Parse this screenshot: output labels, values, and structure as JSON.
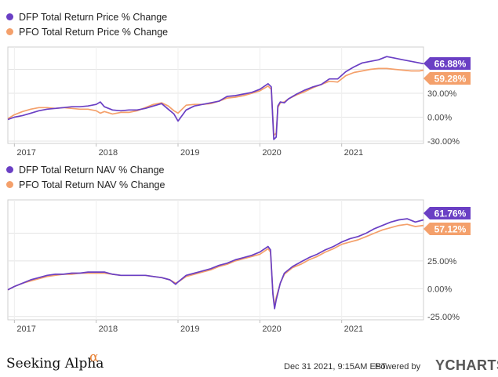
{
  "chart_data": [
    {
      "type": "line",
      "legend_placement": "top-left",
      "grid": true,
      "x_ticks": [
        "2017",
        "2018",
        "2019",
        "2020",
        "2021"
      ],
      "x_range": [
        2016.92,
        2022.0
      ],
      "ylim": [
        -33,
        88
      ],
      "y_ticks": [
        -30,
        0,
        30
      ],
      "y_tick_labels": [
        "-30.00%",
        "0.00%",
        "30.00%"
      ],
      "series": [
        {
          "name": "DFP Total Return Price % Change",
          "color": "#6a3fc4",
          "end_label": "66.88%",
          "x": [
            2016.92,
            2017.0,
            2017.1,
            2017.2,
            2017.3,
            2017.4,
            2017.5,
            2017.6,
            2017.7,
            2017.8,
            2017.9,
            2018.0,
            2018.05,
            2018.1,
            2018.2,
            2018.3,
            2018.4,
            2018.5,
            2018.6,
            2018.7,
            2018.8,
            2018.88,
            2018.95,
            2019.0,
            2019.1,
            2019.2,
            2019.3,
            2019.4,
            2019.5,
            2019.6,
            2019.7,
            2019.8,
            2019.9,
            2020.0,
            2020.1,
            2020.14,
            2020.17,
            2020.2,
            2020.22,
            2020.25,
            2020.3,
            2020.35,
            2020.45,
            2020.55,
            2020.65,
            2020.75,
            2020.85,
            2020.95,
            2021.05,
            2021.15,
            2021.25,
            2021.35,
            2021.45,
            2021.55,
            2021.65,
            2021.75,
            2021.85,
            2021.95,
            2022.0
          ],
          "values": [
            -3,
            0,
            2,
            5,
            8,
            10,
            11,
            12,
            13,
            13,
            14,
            16,
            19,
            13,
            9,
            8,
            9,
            9,
            11,
            14,
            17,
            10,
            4,
            -5,
            9,
            14,
            16,
            18,
            20,
            26,
            27,
            29,
            31,
            35,
            42,
            38,
            -28,
            -25,
            14,
            19,
            18,
            23,
            29,
            34,
            38,
            41,
            48,
            48,
            57,
            63,
            68,
            70,
            72,
            76,
            74,
            72,
            70,
            68,
            67
          ]
        },
        {
          "name": "PFO Total Return Price % Change",
          "color": "#f4a06b",
          "end_label": "59.28%",
          "x": [
            2016.92,
            2017.0,
            2017.1,
            2017.2,
            2017.3,
            2017.4,
            2017.5,
            2017.6,
            2017.7,
            2017.8,
            2017.9,
            2018.0,
            2018.05,
            2018.1,
            2018.2,
            2018.3,
            2018.4,
            2018.5,
            2018.6,
            2018.7,
            2018.8,
            2018.88,
            2018.95,
            2019.0,
            2019.1,
            2019.2,
            2019.3,
            2019.4,
            2019.5,
            2019.6,
            2019.7,
            2019.8,
            2019.9,
            2020.0,
            2020.1,
            2020.14,
            2020.17,
            2020.2,
            2020.22,
            2020.25,
            2020.3,
            2020.35,
            2020.45,
            2020.55,
            2020.65,
            2020.75,
            2020.85,
            2020.95,
            2021.05,
            2021.15,
            2021.25,
            2021.35,
            2021.45,
            2021.55,
            2021.65,
            2021.75,
            2021.85,
            2021.95,
            2022.0
          ],
          "values": [
            -2,
            3,
            7,
            10,
            12,
            12,
            11,
            12,
            11,
            10,
            10,
            8,
            5,
            7,
            4,
            6,
            6,
            8,
            12,
            16,
            18,
            14,
            8,
            5,
            15,
            16,
            16,
            17,
            20,
            24,
            25,
            27,
            30,
            33,
            39,
            35,
            -23,
            -20,
            12,
            18,
            19,
            23,
            28,
            32,
            37,
            41,
            45,
            44,
            52,
            56,
            58,
            60,
            61,
            61,
            60,
            59,
            58,
            58,
            59
          ]
        }
      ]
    },
    {
      "type": "line",
      "legend_placement": "top-left",
      "grid": true,
      "x_ticks": [
        "2017",
        "2018",
        "2019",
        "2020",
        "2021"
      ],
      "x_range": [
        2016.92,
        2022.0
      ],
      "ylim": [
        -28,
        80
      ],
      "y_ticks": [
        -25,
        0,
        25
      ],
      "y_tick_labels": [
        "-25.00%",
        "0.00%",
        "25.00%"
      ],
      "series": [
        {
          "name": "DFP Total Return NAV % Change",
          "color": "#6a3fc4",
          "end_label": "61.76%",
          "x": [
            2016.92,
            2017.0,
            2017.1,
            2017.2,
            2017.3,
            2017.4,
            2017.5,
            2017.6,
            2017.7,
            2017.8,
            2017.9,
            2018.0,
            2018.1,
            2018.2,
            2018.3,
            2018.4,
            2018.5,
            2018.6,
            2018.7,
            2018.8,
            2018.9,
            2018.97,
            2019.0,
            2019.1,
            2019.2,
            2019.3,
            2019.4,
            2019.5,
            2019.6,
            2019.7,
            2019.8,
            2019.9,
            2020.0,
            2020.1,
            2020.13,
            2020.16,
            2020.18,
            2020.2,
            2020.25,
            2020.3,
            2020.4,
            2020.5,
            2020.6,
            2020.7,
            2020.8,
            2020.9,
            2021.0,
            2021.1,
            2021.2,
            2021.3,
            2021.4,
            2021.5,
            2021.6,
            2021.7,
            2021.8,
            2021.9,
            2022.0
          ],
          "values": [
            -1,
            2,
            5,
            8,
            10,
            12,
            13,
            13,
            14,
            14,
            15,
            15,
            15,
            13,
            12,
            12,
            12,
            12,
            11,
            10,
            8,
            4,
            6,
            12,
            14,
            16,
            18,
            21,
            23,
            26,
            28,
            30,
            33,
            38,
            35,
            -5,
            -18,
            -10,
            5,
            14,
            20,
            24,
            28,
            31,
            35,
            38,
            42,
            45,
            47,
            50,
            54,
            57,
            60,
            62,
            63,
            60,
            62
          ]
        },
        {
          "name": "PFO Total Return NAV % Change",
          "color": "#f4a06b",
          "end_label": "57.12%",
          "x": [
            2016.92,
            2017.0,
            2017.1,
            2017.2,
            2017.3,
            2017.4,
            2017.5,
            2017.6,
            2017.7,
            2017.8,
            2017.9,
            2018.0,
            2018.1,
            2018.2,
            2018.3,
            2018.4,
            2018.5,
            2018.6,
            2018.7,
            2018.8,
            2018.9,
            2018.97,
            2019.0,
            2019.1,
            2019.2,
            2019.3,
            2019.4,
            2019.5,
            2019.6,
            2019.7,
            2019.8,
            2019.9,
            2020.0,
            2020.1,
            2020.13,
            2020.16,
            2020.18,
            2020.2,
            2020.25,
            2020.3,
            2020.4,
            2020.5,
            2020.6,
            2020.7,
            2020.8,
            2020.9,
            2021.0,
            2021.1,
            2021.2,
            2021.3,
            2021.4,
            2021.5,
            2021.6,
            2021.7,
            2021.8,
            2021.9,
            2022.0
          ],
          "values": [
            -1,
            2,
            5,
            7,
            9,
            11,
            12,
            13,
            13,
            14,
            14,
            14,
            14,
            13,
            12,
            12,
            12,
            12,
            11,
            10,
            8,
            5,
            6,
            11,
            13,
            15,
            17,
            20,
            22,
            25,
            27,
            29,
            31,
            36,
            33,
            -4,
            -16,
            -8,
            5,
            13,
            19,
            22,
            26,
            29,
            33,
            36,
            40,
            42,
            44,
            47,
            50,
            53,
            55,
            57,
            58,
            56,
            57
          ]
        }
      ]
    }
  ],
  "footer": {
    "brand": "Seeking Alpha",
    "brand_mark": "α",
    "timestamp": "Dec 31 2021, 9:15AM EST.",
    "powered_by": "Powered by",
    "provider_y": "Y",
    "provider_rest": "CHARTS"
  }
}
